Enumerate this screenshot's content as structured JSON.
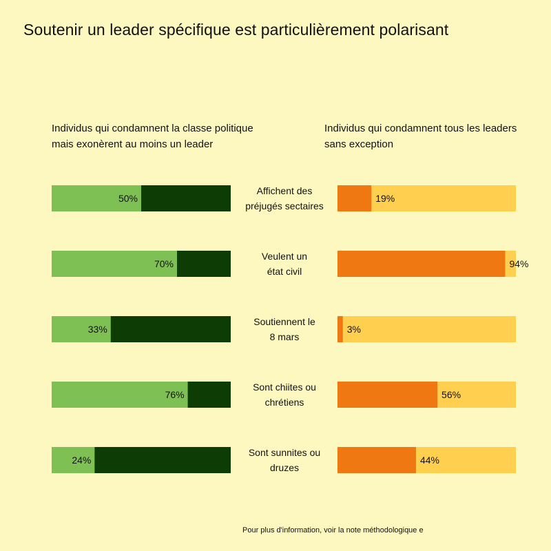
{
  "title": "Soutenir un leader spécifique est particulièrement polarisant",
  "footnote": "Pour plus d'information, voir la note méthodologique e",
  "colors": {
    "background": "#fcf8bf",
    "left_value": "#7fc054",
    "left_rest": "#0e3c05",
    "right_value": "#f07812",
    "right_rest": "#ffd04f"
  },
  "chart_data": [
    {
      "type": "bar",
      "title": "Individus qui condamnent la classe politique mais exonèrent au moins un leader",
      "categories": [
        "Affichent des préjugés sectaires",
        "Veulent un état civil",
        "Soutiennent le 8 mars",
        "Sont chiites ou chrétiens",
        "Sont sunnites ou druzes"
      ],
      "values": [
        50,
        70,
        33,
        76,
        24
      ],
      "value_labels": [
        "50%",
        "70%",
        "33%",
        "76%",
        "24%"
      ],
      "ylim": [
        0,
        100
      ]
    },
    {
      "type": "bar",
      "title": "Individus qui condamnent tous les leaders sans exception",
      "categories": [
        "Affichent des préjugés sectaires",
        "Veulent un état civil",
        "Soutiennent le 8 mars",
        "Sont chiites ou chrétiens",
        "Sont sunnites ou druzes"
      ],
      "values": [
        19,
        94,
        3,
        56,
        44
      ],
      "value_labels": [
        "19%",
        "94%",
        "3%",
        "56%",
        "44%"
      ],
      "ylim": [
        0,
        100
      ]
    }
  ],
  "category_lines": [
    [
      "Affichent des",
      "préjugés sectaires"
    ],
    [
      "Veulent un",
      "état civil"
    ],
    [
      "Soutiennent le",
      "8 mars"
    ],
    [
      "Sont chiites ou",
      "chrétiens"
    ],
    [
      "Sont sunnites ou",
      "druzes"
    ]
  ]
}
